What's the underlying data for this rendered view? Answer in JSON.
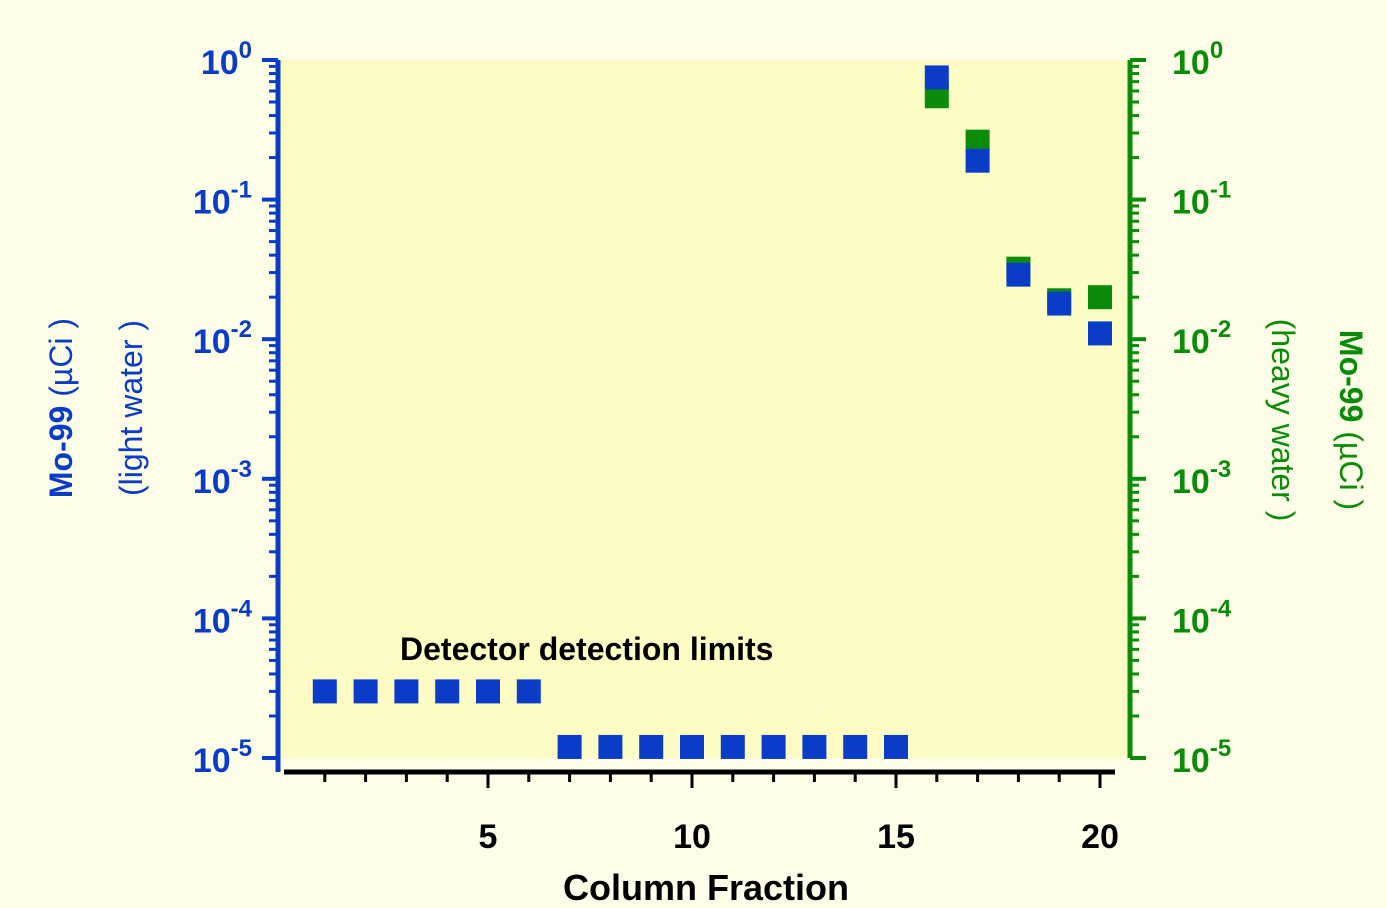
{
  "chart_data": {
    "type": "scatter",
    "title": "",
    "xlabel": "Column Fraction",
    "ylabel_left": {
      "line1_bold": "Mo-99",
      "line1_rest": " (µCi )",
      "line2": "(light water )"
    },
    "ylabel_right": {
      "line1_bold": "Mo-99",
      "line1_rest": " (µCi )",
      "line2": "(heavy water )"
    },
    "xlim": [
      0,
      20.5
    ],
    "xticks": [
      5,
      10,
      15,
      20
    ],
    "y_scale": "log",
    "ylim": [
      1e-05,
      1
    ],
    "yticks": [
      {
        "value": 1,
        "base": "10",
        "exp": "0"
      },
      {
        "value": 0.1,
        "base": "10",
        "exp": "-1"
      },
      {
        "value": 0.01,
        "base": "10",
        "exp": "-2"
      },
      {
        "value": 0.001,
        "base": "10",
        "exp": "-3"
      },
      {
        "value": 0.0001,
        "base": "10",
        "exp": "-4"
      },
      {
        "value": 1e-05,
        "base": "10",
        "exp": "-5"
      }
    ],
    "annotation": "Detector detection limits",
    "colors": {
      "background": "#fefee8",
      "plot_area": "#fcfcc4",
      "light_water": "#0a3cc8",
      "heavy_water": "#0a8c0a",
      "left_axis": "#0a3cc8",
      "right_axis": "#0a8c0a",
      "text": "#000000"
    },
    "series": [
      {
        "name": "heavy water",
        "axis": "right",
        "color": "#0a8c0a",
        "x": [
          16,
          17,
          18,
          19,
          20
        ],
        "y": [
          0.55,
          0.26,
          0.032,
          0.019,
          0.02
        ]
      },
      {
        "name": "light water",
        "axis": "left",
        "color": "#0a3cc8",
        "x": [
          1,
          2,
          3,
          4,
          5,
          6,
          7,
          8,
          9,
          10,
          11,
          12,
          13,
          14,
          15,
          16,
          17,
          18,
          19,
          20
        ],
        "y": [
          3e-05,
          3e-05,
          3e-05,
          3e-05,
          3e-05,
          3e-05,
          1.2e-05,
          1.2e-05,
          1.2e-05,
          1.2e-05,
          1.2e-05,
          1.2e-05,
          1.2e-05,
          1.2e-05,
          1.2e-05,
          0.75,
          0.19,
          0.029,
          0.018,
          0.011
        ]
      }
    ]
  }
}
